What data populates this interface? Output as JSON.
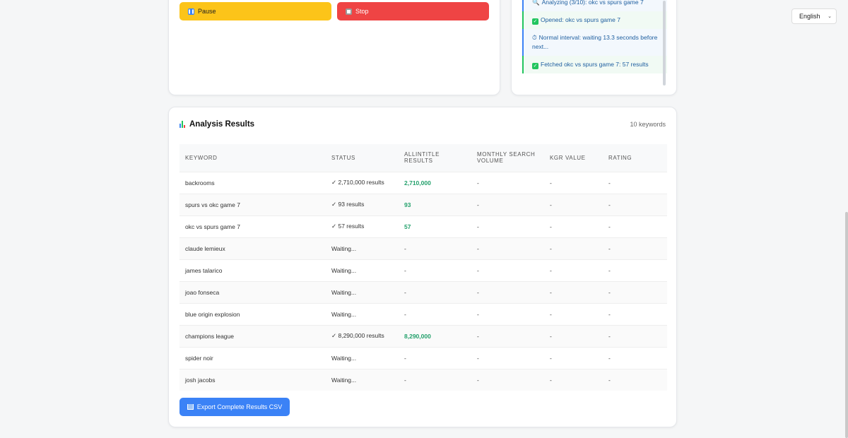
{
  "controls": {
    "pause_label": "Pause",
    "stop_label": "Stop",
    "pause_icon": "pause-icon",
    "stop_icon": "stop-icon"
  },
  "log": {
    "entries": [
      {
        "glyph": "🔍",
        "text": "Analyzing (3/10): okc vs spurs game 7",
        "type": "info"
      },
      {
        "glyph": "✓",
        "text": "Opened: okc vs spurs game 7",
        "type": "ok"
      },
      {
        "glyph": "⏱",
        "text": "Normal interval: waiting 13.3 seconds before next...",
        "type": "info"
      },
      {
        "glyph": "✓",
        "text": "Fetched okc vs spurs game 7: 57 results",
        "type": "ok"
      }
    ]
  },
  "results": {
    "title": "Analysis Results",
    "count": "10 keywords",
    "columns": [
      "KEYWORD",
      "STATUS",
      "ALLINTITLE RESULTS",
      "MONTHLY SEARCH VOLUME",
      "KGR VALUE",
      "RATING"
    ],
    "rows": [
      {
        "keyword": "backrooms",
        "status": "✓ 2,710,000 results",
        "allintitle": "2,710,000",
        "volume": "-",
        "kgr": "-",
        "rating": "-"
      },
      {
        "keyword": "spurs vs okc game 7",
        "status": "✓ 93 results",
        "allintitle": "93",
        "volume": "-",
        "kgr": "-",
        "rating": "-"
      },
      {
        "keyword": "okc vs spurs game 7",
        "status": "✓ 57 results",
        "allintitle": "57",
        "volume": "-",
        "kgr": "-",
        "rating": "-"
      },
      {
        "keyword": "claude lemieux",
        "status": "Waiting...",
        "allintitle": "-",
        "volume": "-",
        "kgr": "-",
        "rating": "-"
      },
      {
        "keyword": "james talarico",
        "status": "Waiting...",
        "allintitle": "-",
        "volume": "-",
        "kgr": "-",
        "rating": "-"
      },
      {
        "keyword": "joao fonseca",
        "status": "Waiting...",
        "allintitle": "-",
        "volume": "-",
        "kgr": "-",
        "rating": "-"
      },
      {
        "keyword": "blue origin explosion",
        "status": "Waiting...",
        "allintitle": "-",
        "volume": "-",
        "kgr": "-",
        "rating": "-"
      },
      {
        "keyword": "champions league",
        "status": "✓ 8,290,000 results",
        "allintitle": "8,290,000",
        "volume": "-",
        "kgr": "-",
        "rating": "-"
      },
      {
        "keyword": "spider noir",
        "status": "Waiting...",
        "allintitle": "-",
        "volume": "-",
        "kgr": "-",
        "rating": "-"
      },
      {
        "keyword": "josh jacobs",
        "status": "Waiting...",
        "allintitle": "-",
        "volume": "-",
        "kgr": "-",
        "rating": "-"
      }
    ],
    "export_label": "Export Complete Results CSV"
  },
  "language": {
    "selected": "English"
  },
  "colors": {
    "pause": "#fcc419",
    "stop": "#ef4444",
    "primary": "#3b82f6",
    "success": "#22a06b"
  }
}
